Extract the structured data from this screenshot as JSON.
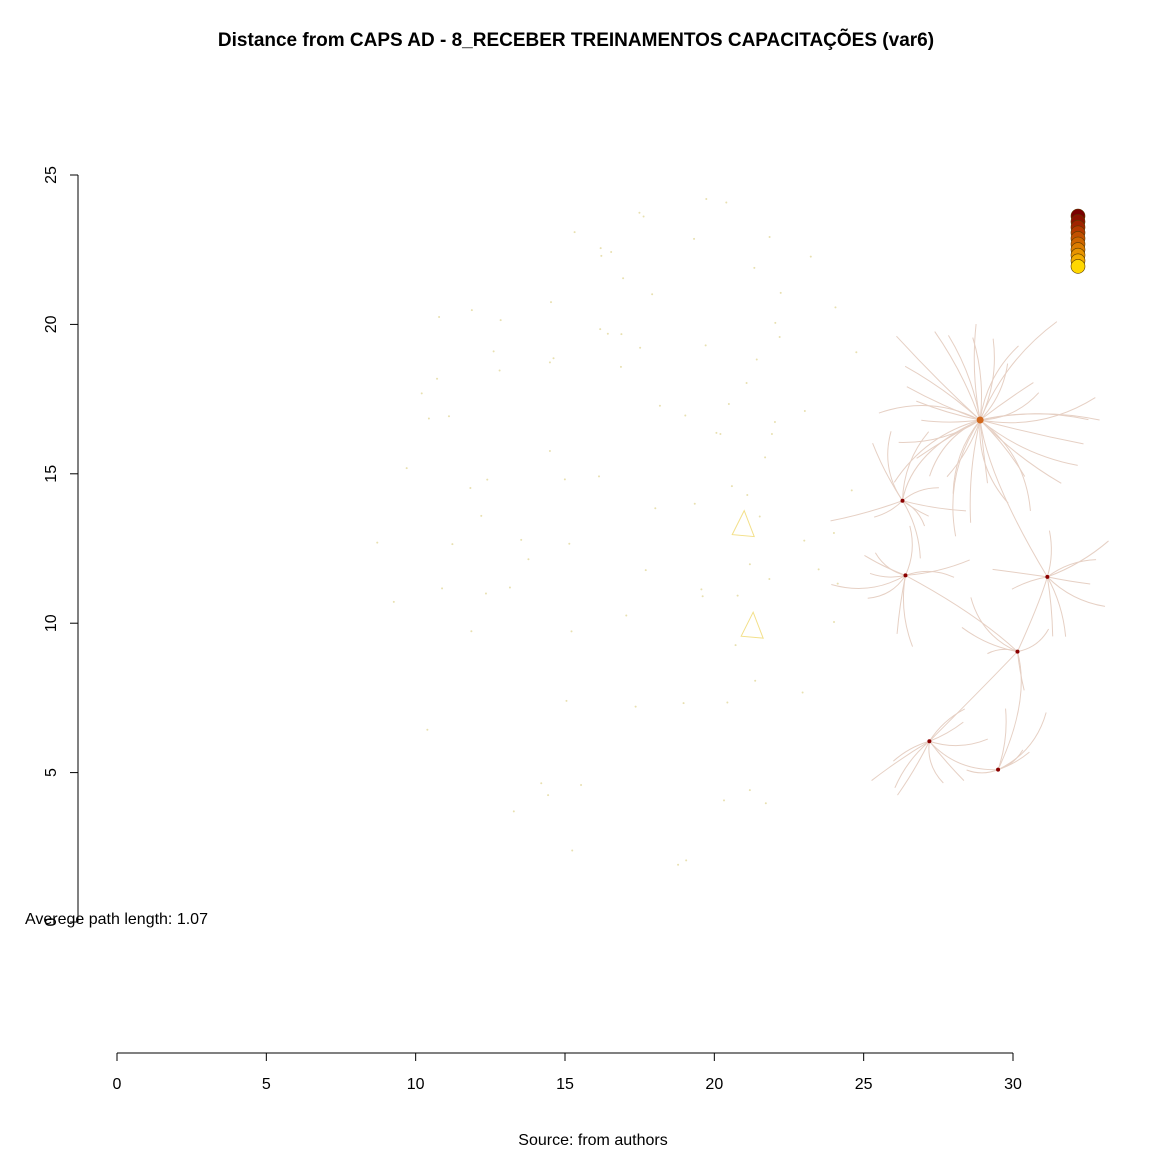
{
  "title": "Distance from CAPS AD - 8_RECEBER TREINAMENTOS CAPACITAÇÕES (var6)",
  "caption": "Source: from authors",
  "avg_path_label": "Averege path length: 1.07",
  "colors": {
    "edge": "#e6d0c4",
    "edge_yellow": "#f3e08a",
    "hub_dark": "#8b0000",
    "hub_orange": "#d2691e",
    "node_faint": "#e8e0b0",
    "axis": "#000000",
    "legend_scale": [
      "#7a0000",
      "#8c1200",
      "#a02400",
      "#b43a00",
      "#c25000",
      "#cf6600",
      "#dc7d00",
      "#e89400",
      "#f3ad00",
      "#ffd700"
    ]
  },
  "chart_data": {
    "type": "network",
    "xlim": [
      0,
      30
    ],
    "ylim": [
      0,
      25
    ],
    "x_ticks": [
      "0",
      "5",
      "10",
      "15",
      "20",
      "25",
      "30"
    ],
    "y_ticks": [
      "0",
      "5",
      "10",
      "15",
      "20",
      "25"
    ],
    "hubs": [
      {
        "x": 28.9,
        "y": 16.8,
        "kind": "orange"
      },
      {
        "x": 30.15,
        "y": 9.05,
        "kind": "dark"
      },
      {
        "x": 29.5,
        "y": 5.1,
        "kind": "dark"
      },
      {
        "x": 27.2,
        "y": 6.05,
        "kind": "dark"
      },
      {
        "x": 31.15,
        "y": 11.55,
        "kind": "dark"
      },
      {
        "x": 26.3,
        "y": 14.1,
        "kind": "dark"
      },
      {
        "x": 26.4,
        "y": 11.6,
        "kind": "dark"
      }
    ]
  }
}
